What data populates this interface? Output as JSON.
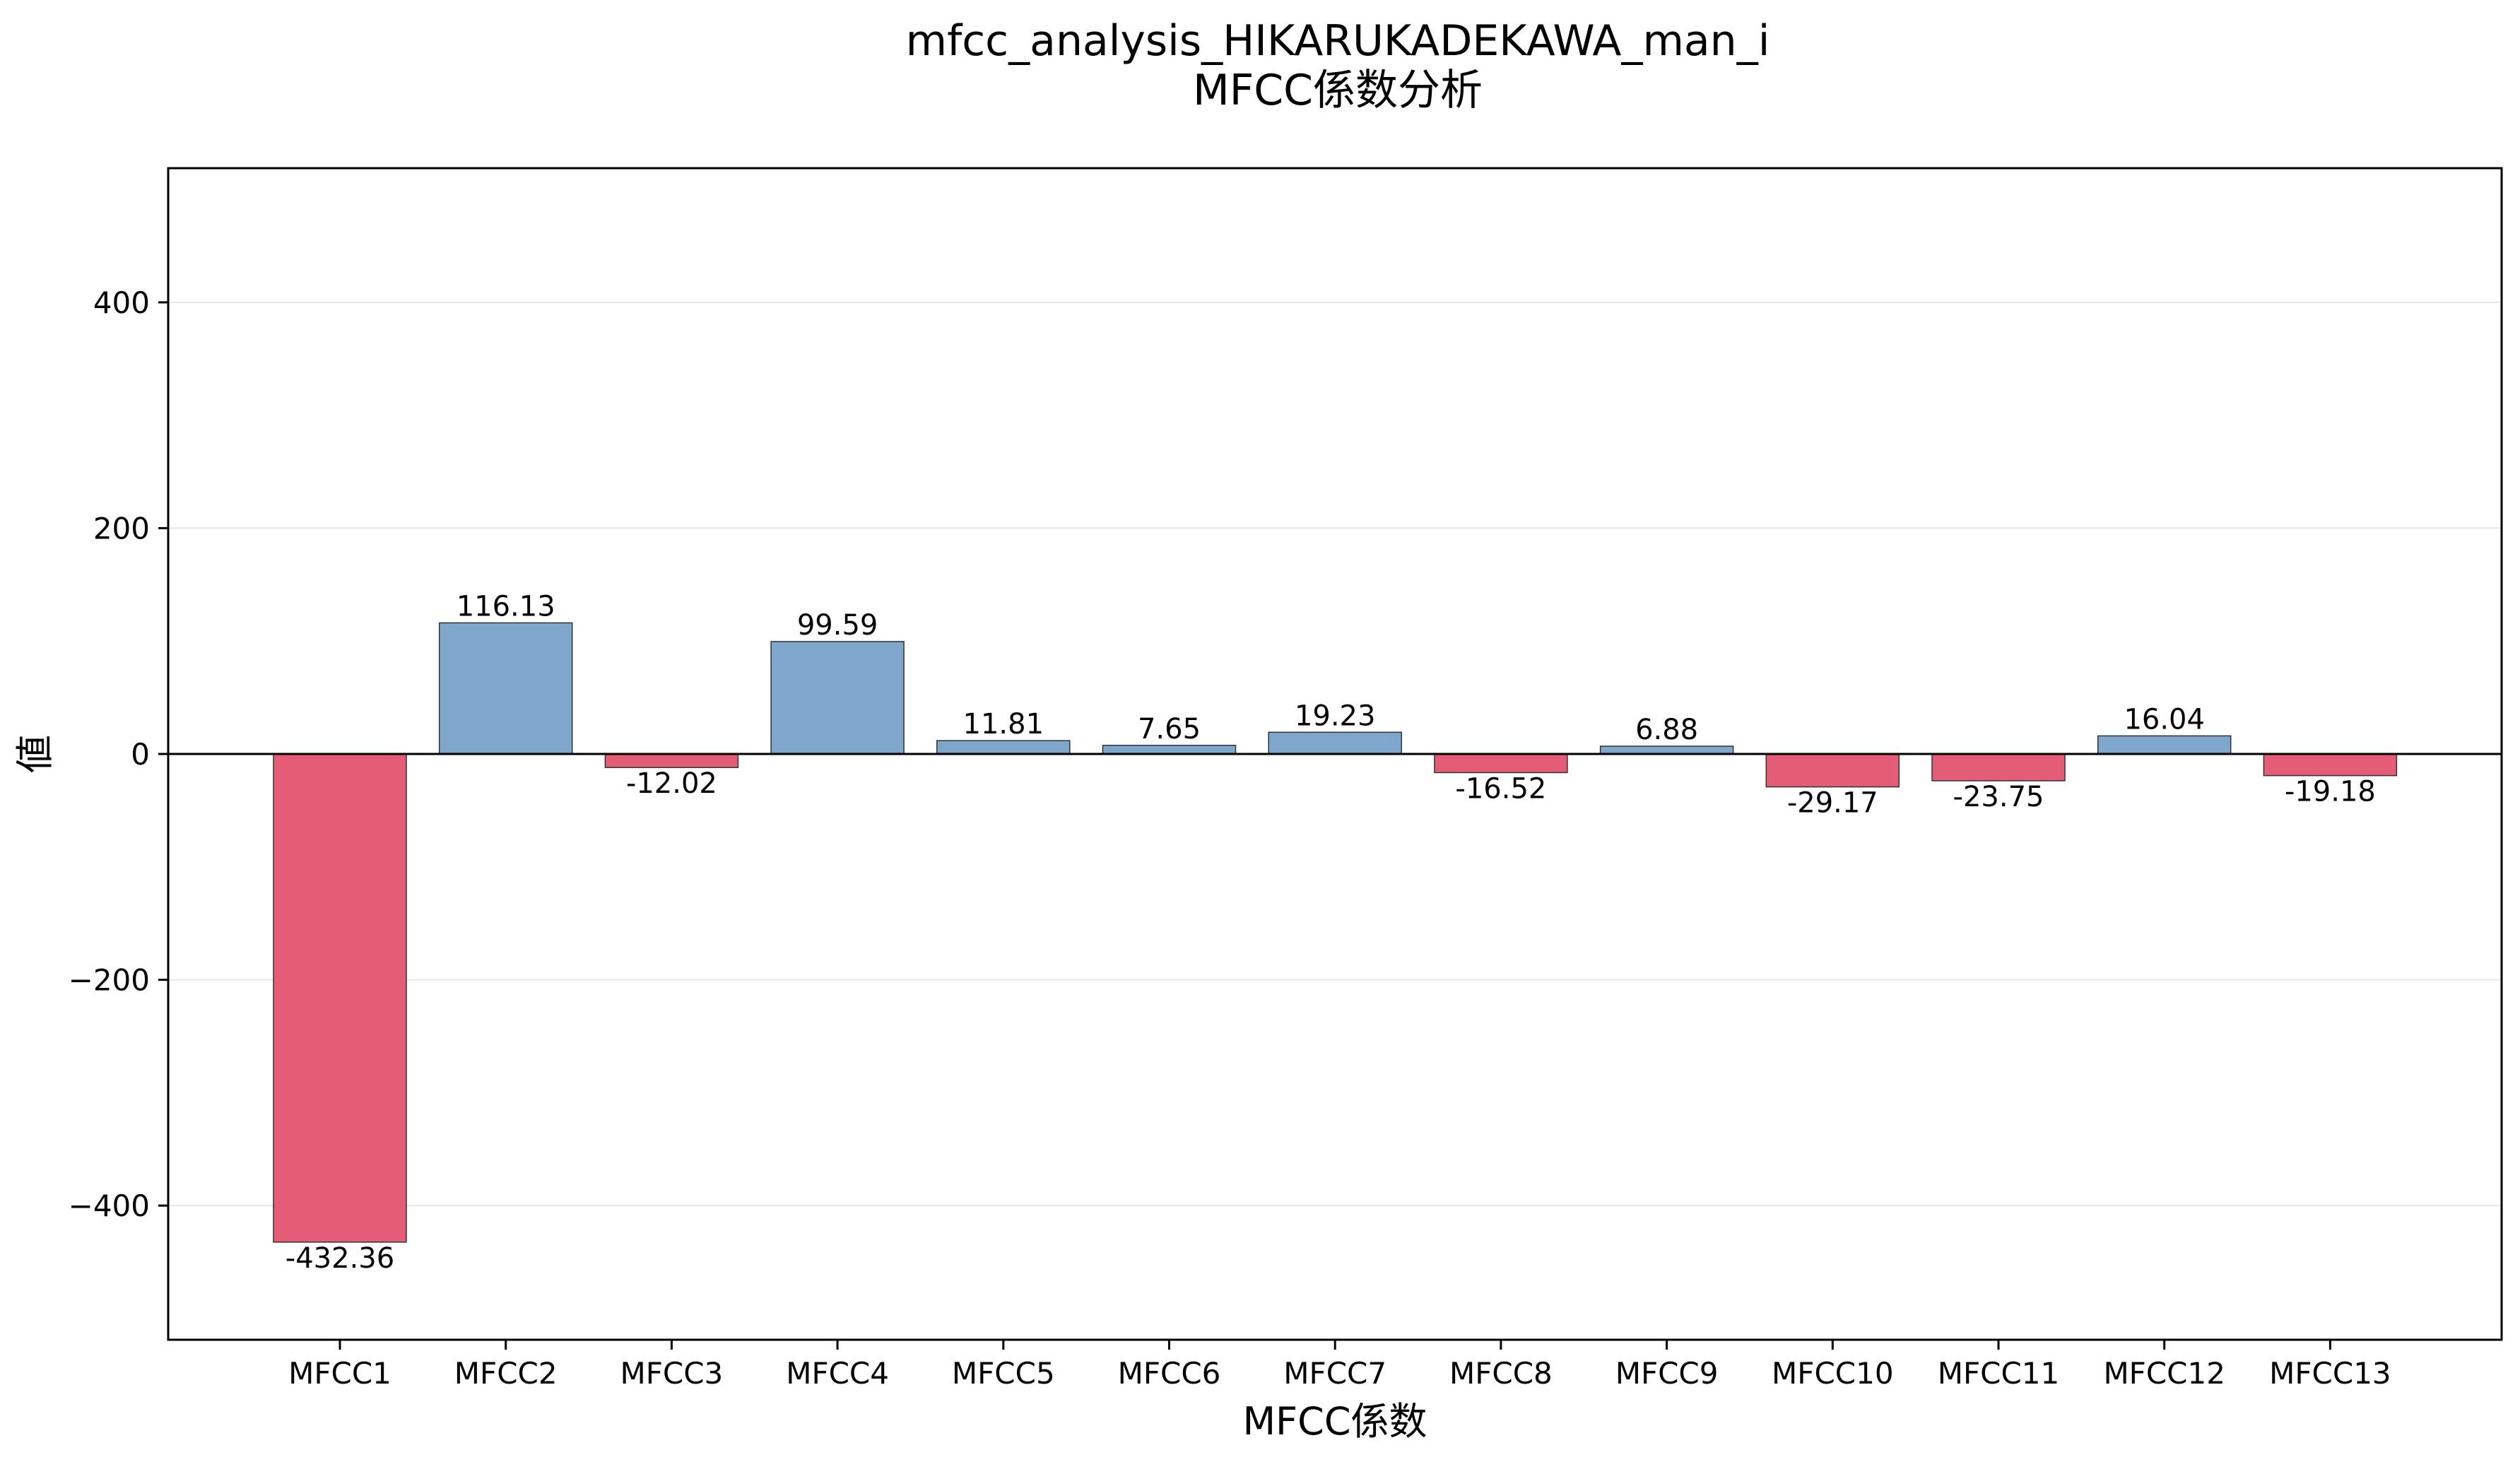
{
  "chart_data": {
    "type": "bar",
    "title": "mfcc_analysis_HIKARUKADEKAWA_man_i",
    "subtitle": "MFCC係数分析",
    "xlabel": "MFCC係数",
    "ylabel": "値",
    "categories": [
      "MFCC1",
      "MFCC2",
      "MFCC3",
      "MFCC4",
      "MFCC5",
      "MFCC6",
      "MFCC7",
      "MFCC8",
      "MFCC9",
      "MFCC10",
      "MFCC11",
      "MFCC12",
      "MFCC13"
    ],
    "values": [
      -432.36,
      116.13,
      -12.02,
      99.59,
      11.81,
      7.65,
      19.23,
      -16.52,
      6.88,
      -29.17,
      -23.75,
      16.04,
      -19.18
    ],
    "value_labels": [
      "-432.36",
      "116.13",
      "-12.02",
      "99.59",
      "11.81",
      "7.65",
      "19.23",
      "-16.52",
      "6.88",
      "-29.17",
      "-23.75",
      "16.04",
      "-19.18"
    ],
    "ylim": [
      -518.83,
      518.83
    ],
    "yticks": [
      -400,
      -200,
      0,
      200,
      400
    ],
    "ytick_labels": [
      "−400",
      "−200",
      "0",
      "200",
      "400"
    ],
    "grid": "y",
    "colors": {
      "positive": "#7fa7cb",
      "negative": "#e55c76",
      "edge": "#333333",
      "zero_line": "#000000",
      "grid": "#e6e6e6"
    }
  }
}
